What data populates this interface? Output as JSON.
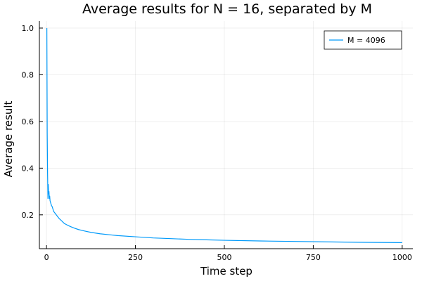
{
  "chart_data": {
    "type": "line",
    "title": "Average results for N = 16, separated by M",
    "xlabel": "Time step",
    "ylabel": "Average result",
    "xlim": [
      -20,
      1030
    ],
    "ylim": [
      0.055,
      1.03
    ],
    "xticks": [
      0,
      250,
      500,
      750,
      1000
    ],
    "yticks": [
      0.2,
      0.4,
      0.6,
      0.8,
      1.0
    ],
    "xtick_labels": [
      "0",
      "250",
      "500",
      "750",
      "1000"
    ],
    "ytick_labels": [
      "0.2",
      "0.4",
      "0.6",
      "0.8",
      "1.0"
    ],
    "grid": true,
    "legend_position": "top-right",
    "series": [
      {
        "name": "M = 4096",
        "color": "#009AFA",
        "x": [
          1,
          2,
          3,
          4,
          5,
          6,
          7,
          8,
          9,
          10,
          12,
          14,
          16,
          18,
          20,
          25,
          30,
          35,
          40,
          50,
          60,
          70,
          80,
          90,
          100,
          125,
          150,
          175,
          200,
          250,
          300,
          350,
          400,
          450,
          500,
          600,
          700,
          800,
          900,
          1000
        ],
        "y": [
          1.0,
          0.55,
          0.38,
          0.27,
          0.33,
          0.29,
          0.3,
          0.27,
          0.28,
          0.26,
          0.25,
          0.24,
          0.235,
          0.225,
          0.215,
          0.205,
          0.195,
          0.185,
          0.178,
          0.163,
          0.155,
          0.148,
          0.142,
          0.137,
          0.133,
          0.125,
          0.119,
          0.115,
          0.111,
          0.106,
          0.101,
          0.098,
          0.095,
          0.093,
          0.091,
          0.088,
          0.086,
          0.084,
          0.082,
          0.081
        ]
      }
    ]
  }
}
